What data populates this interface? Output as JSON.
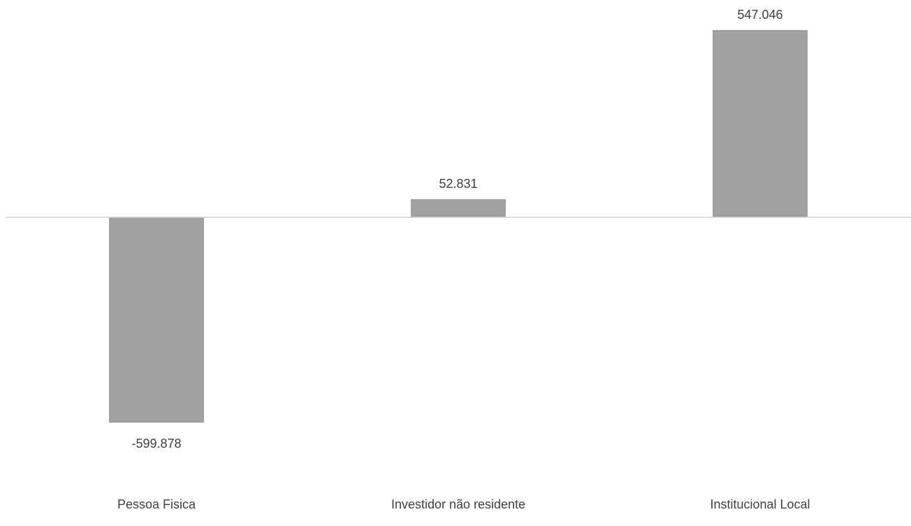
{
  "chart_data": {
    "type": "bar",
    "categories": [
      "Pessoa Fisica",
      "Investidor não residente",
      "Institucional Local"
    ],
    "values": [
      -599.878,
      52.831,
      547.046
    ],
    "data_labels": [
      "-599.878",
      "52.831",
      "547.046"
    ],
    "title": "",
    "xlabel": "",
    "ylabel": "",
    "ylim": [
      -599.878,
      547.046
    ],
    "grid": false,
    "legend": "none",
    "bar_color": "#a0a0a0",
    "axis_color": "#d0d0d0",
    "label_color": "#404040"
  }
}
